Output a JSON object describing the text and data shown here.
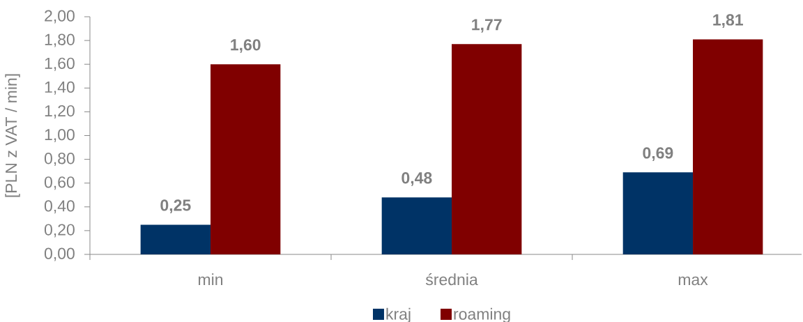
{
  "chart_data": {
    "type": "bar",
    "ylabel": "[PLN z VAT / min]",
    "categories": [
      "min",
      "średnia",
      "max"
    ],
    "series": [
      {
        "name": "kraj",
        "color": "#003366",
        "values": [
          0.25,
          0.48,
          0.69
        ],
        "value_labels": [
          "0,25",
          "0,48",
          "0,69"
        ]
      },
      {
        "name": "roaming",
        "color": "#800000",
        "values": [
          1.6,
          1.77,
          1.81
        ],
        "value_labels": [
          "1,60",
          "1,77",
          "1,81"
        ]
      }
    ],
    "ylim": [
      0,
      2
    ],
    "yticks": [
      {
        "value": 0,
        "label": "0,00"
      },
      {
        "value": 0.2,
        "label": "0,20"
      },
      {
        "value": 0.4,
        "label": "0,40"
      },
      {
        "value": 0.6,
        "label": "0,60"
      },
      {
        "value": 0.8,
        "label": "0,80"
      },
      {
        "value": 1,
        "label": "1,00"
      },
      {
        "value": 1.2,
        "label": "1,20"
      },
      {
        "value": 1.4,
        "label": "1,40"
      },
      {
        "value": 1.6,
        "label": "1,60"
      },
      {
        "value": 1.8,
        "label": "1,80"
      },
      {
        "value": 2,
        "label": "2,00"
      }
    ],
    "legend": "bottom"
  }
}
